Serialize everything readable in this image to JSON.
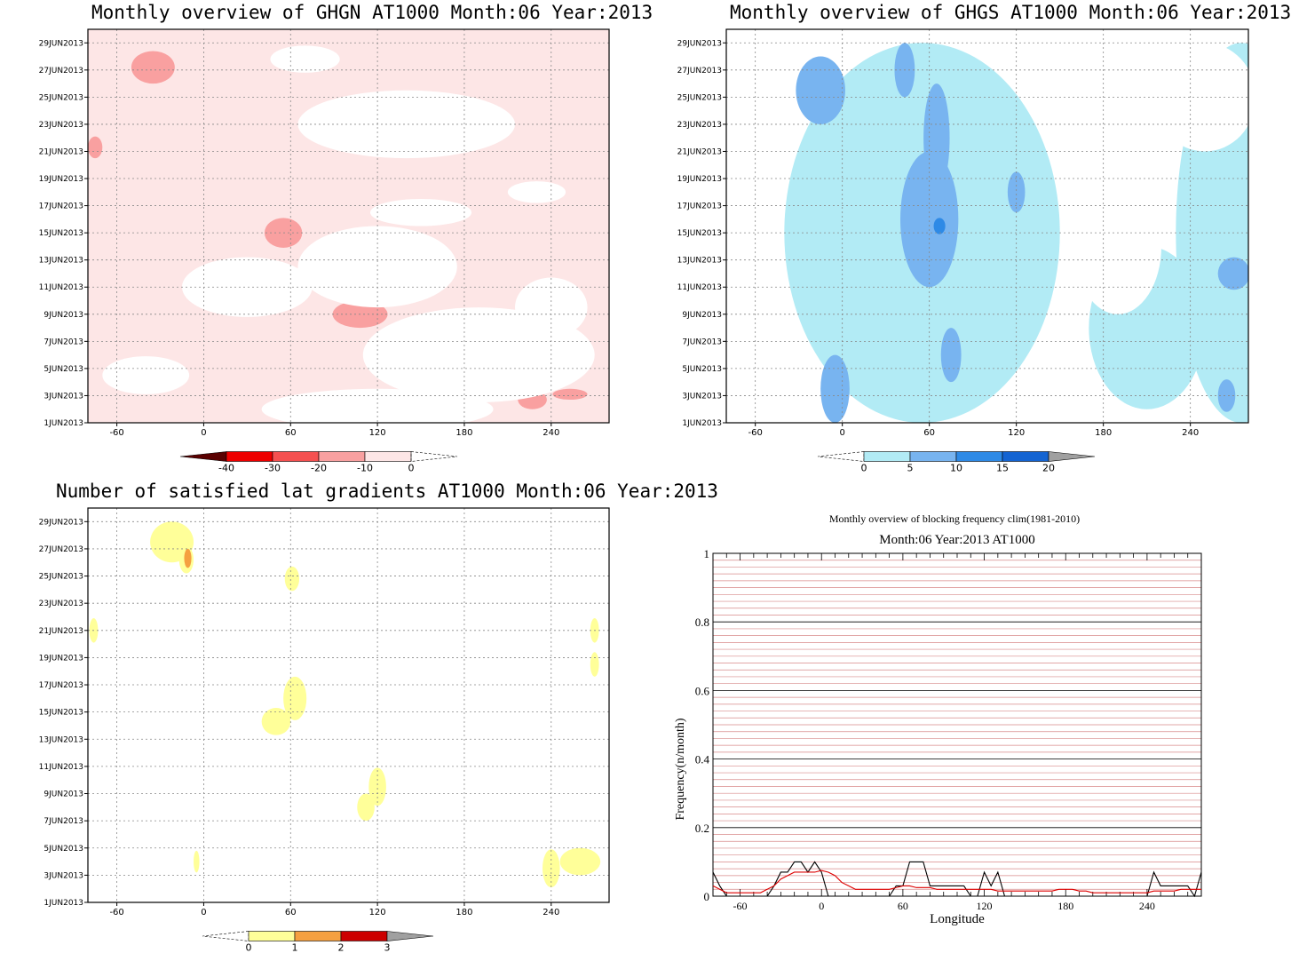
{
  "chart_data": [
    {
      "type": "heatmap",
      "title": "Monthly overview of GHGN AT1000 Month:06 Year:2013",
      "x_ticks": [
        "-60",
        "0",
        "60",
        "120",
        "180",
        "240"
      ],
      "y_ticks": [
        "1JUN2013",
        "3JUN2013",
        "5JUN2013",
        "7JUN2013",
        "9JUN2013",
        "11JUN2013",
        "13JUN2013",
        "15JUN2013",
        "17JUN2013",
        "19JUN2013",
        "21JUN2013",
        "23JUN2013",
        "25JUN2013",
        "27JUN2013",
        "29JUN2013"
      ],
      "colorbar": {
        "labels": [
          "-40",
          "-30",
          "-20",
          "-10",
          "0"
        ],
        "colors": [
          "#5a0000",
          "#ee0000",
          "#f55050",
          "#f9a0a0",
          "#fde6e6"
        ]
      },
      "background": "#fde6e6",
      "regions": [
        {
          "level": "-10",
          "color": "#f9a0a0",
          "cx": -35,
          "cy": 27.2,
          "rx": 15,
          "ry": 1.2
        },
        {
          "level": "-10",
          "color": "#f9a0a0",
          "cx": -75,
          "cy": 21.3,
          "rx": 5,
          "ry": 0.8
        },
        {
          "level": "-10",
          "color": "#f9a0a0",
          "cx": 55,
          "cy": 15.0,
          "rx": 13,
          "ry": 1.1
        },
        {
          "level": "-10",
          "color": "#f9a0a0",
          "cx": 108,
          "cy": 9.0,
          "rx": 19,
          "ry": 1.0
        },
        {
          "level": "-10",
          "color": "#f9a0a0",
          "cx": 227,
          "cy": 2.7,
          "rx": 10,
          "ry": 0.7
        },
        {
          "level": "-10",
          "color": "#f9a0a0",
          "cx": 253,
          "cy": 3.1,
          "rx": 12,
          "ry": 0.4
        },
        {
          "level": "0+",
          "color": "#ffffff",
          "cx": 70,
          "cy": 27.8,
          "rx": 24,
          "ry": 1.0
        },
        {
          "level": "0+",
          "color": "#ffffff",
          "cx": 140,
          "cy": 23.0,
          "rx": 75,
          "ry": 2.5
        },
        {
          "level": "0+",
          "color": "#ffffff",
          "cx": 30,
          "cy": 11.0,
          "rx": 45,
          "ry": 2.2
        },
        {
          "level": "0+",
          "color": "#ffffff",
          "cx": 120,
          "cy": 12.5,
          "rx": 55,
          "ry": 3.0
        },
        {
          "level": "0+",
          "color": "#ffffff",
          "cx": 190,
          "cy": 6.0,
          "rx": 80,
          "ry": 3.5
        },
        {
          "level": "0+",
          "color": "#ffffff",
          "cx": -40,
          "cy": 4.5,
          "rx": 30,
          "ry": 1.4
        },
        {
          "level": "0+",
          "color": "#ffffff",
          "cx": 120,
          "cy": 2.0,
          "rx": 80,
          "ry": 1.5
        },
        {
          "level": "0+",
          "color": "#ffffff",
          "cx": 240,
          "cy": 9.5,
          "rx": 25,
          "ry": 2.2
        },
        {
          "level": "0+",
          "color": "#ffffff",
          "cx": 150,
          "cy": 16.5,
          "rx": 35,
          "ry": 1.0
        },
        {
          "level": "0+",
          "color": "#ffffff",
          "cx": 230,
          "cy": 18.0,
          "rx": 20,
          "ry": 0.8
        }
      ]
    },
    {
      "type": "heatmap",
      "title": "Monthly overview of GHGS AT1000 Month:06 Year:2013",
      "x_ticks": [
        "-60",
        "0",
        "60",
        "120",
        "180",
        "240"
      ],
      "y_ticks": [
        "1JUN2013",
        "3JUN2013",
        "5JUN2013",
        "7JUN2013",
        "9JUN2013",
        "11JUN2013",
        "13JUN2013",
        "15JUN2013",
        "17JUN2013",
        "19JUN2013",
        "21JUN2013",
        "23JUN2013",
        "25JUN2013",
        "27JUN2013",
        "29JUN2013"
      ],
      "colorbar": {
        "labels": [
          "0",
          "5",
          "10",
          "15",
          "20"
        ],
        "colors": [
          "#b2ebf5",
          "#78b4f0",
          "#2e8ae6",
          "#1464d2",
          "#a0a0a0"
        ]
      },
      "background": "#ffffff",
      "regions": [
        {
          "level": "0-5",
          "color": "#b2ebf5",
          "cx": 55,
          "cy": 15,
          "rx": 95,
          "ry": 14
        },
        {
          "level": "0-5",
          "color": "#b2ebf5",
          "cx": 275,
          "cy": 15,
          "rx": 45,
          "ry": 14
        },
        {
          "level": "0-5",
          "color": "#b2ebf5",
          "cx": 210,
          "cy": 8,
          "rx": 40,
          "ry": 6
        },
        {
          "level": "0+",
          "color": "#ffffff",
          "cx": 190,
          "cy": 14,
          "rx": 30,
          "ry": 5
        },
        {
          "level": "0+",
          "color": "#ffffff",
          "cx": 250,
          "cy": 25,
          "rx": 35,
          "ry": 4
        },
        {
          "level": "5-10",
          "color": "#78b4f0",
          "cx": -15,
          "cy": 25.5,
          "rx": 17,
          "ry": 2.5
        },
        {
          "level": "5-10",
          "color": "#78b4f0",
          "cx": 60,
          "cy": 16,
          "rx": 20,
          "ry": 5
        },
        {
          "level": "5-10",
          "color": "#78b4f0",
          "cx": 65,
          "cy": 22,
          "rx": 9,
          "ry": 4
        },
        {
          "level": "5-10",
          "color": "#78b4f0",
          "cx": 75,
          "cy": 6,
          "rx": 7,
          "ry": 2
        },
        {
          "level": "5-10",
          "color": "#78b4f0",
          "cx": -5,
          "cy": 3.5,
          "rx": 10,
          "ry": 2.5
        },
        {
          "level": "5-10",
          "color": "#78b4f0",
          "cx": 270,
          "cy": 12,
          "rx": 11,
          "ry": 1.2
        },
        {
          "level": "5-10",
          "color": "#78b4f0",
          "cx": 265,
          "cy": 3,
          "rx": 6,
          "ry": 1.2
        },
        {
          "level": "5-10",
          "color": "#78b4f0",
          "cx": 43,
          "cy": 27,
          "rx": 7,
          "ry": 2
        },
        {
          "level": "5-10",
          "color": "#78b4f0",
          "cx": 120,
          "cy": 18,
          "rx": 6,
          "ry": 1.5
        },
        {
          "level": "10-15",
          "color": "#2e8ae6",
          "cx": 67,
          "cy": 15.5,
          "rx": 4,
          "ry": 0.6
        }
      ]
    },
    {
      "type": "heatmap",
      "title": "Number of satisfied lat gradients AT1000 Month:06 Year:2013",
      "x_ticks": [
        "-60",
        "0",
        "60",
        "120",
        "180",
        "240"
      ],
      "y_ticks": [
        "1JUN2013",
        "3JUN2013",
        "5JUN2013",
        "7JUN2013",
        "9JUN2013",
        "11JUN2013",
        "13JUN2013",
        "15JUN2013",
        "17JUN2013",
        "19JUN2013",
        "21JUN2013",
        "23JUN2013",
        "25JUN2013",
        "27JUN2013",
        "29JUN2013"
      ],
      "colorbar": {
        "labels": [
          "0",
          "1",
          "2",
          "3"
        ],
        "colors": [
          "#ffff99",
          "#f5a040",
          "#cc0000",
          "#a0a0a0"
        ]
      },
      "background": "#ffffff",
      "regions": [
        {
          "level": "0-1",
          "color": "#ffff99",
          "cx": -22,
          "cy": 27.5,
          "rx": 15,
          "ry": 1.5
        },
        {
          "level": "0-1",
          "color": "#ffff99",
          "cx": -12,
          "cy": 26.2,
          "rx": 5,
          "ry": 1.0
        },
        {
          "level": "0-1",
          "color": "#ffff99",
          "cx": 61,
          "cy": 24.8,
          "rx": 5,
          "ry": 0.9
        },
        {
          "level": "0-1",
          "color": "#ffff99",
          "cx": -76,
          "cy": 21,
          "rx": 3,
          "ry": 0.9
        },
        {
          "level": "0-1",
          "color": "#ffff99",
          "cx": 270,
          "cy": 21,
          "rx": 3,
          "ry": 0.9
        },
        {
          "level": "0-1",
          "color": "#ffff99",
          "cx": 270,
          "cy": 18.5,
          "rx": 3,
          "ry": 0.9
        },
        {
          "level": "0-1",
          "color": "#ffff99",
          "cx": 50,
          "cy": 14.3,
          "rx": 10,
          "ry": 1.0
        },
        {
          "level": "0-1",
          "color": "#ffff99",
          "cx": 63,
          "cy": 16,
          "rx": 8,
          "ry": 1.6
        },
        {
          "level": "0-1",
          "color": "#ffff99",
          "cx": 112,
          "cy": 8,
          "rx": 6,
          "ry": 1.0
        },
        {
          "level": "0-1",
          "color": "#ffff99",
          "cx": 120,
          "cy": 9.5,
          "rx": 6,
          "ry": 1.4
        },
        {
          "level": "0-1",
          "color": "#ffff99",
          "cx": -5,
          "cy": 4,
          "rx": 2,
          "ry": 0.8
        },
        {
          "level": "0-1",
          "color": "#ffff99",
          "cx": 240,
          "cy": 3.5,
          "rx": 6,
          "ry": 1.4
        },
        {
          "level": "0-1",
          "color": "#ffff99",
          "cx": 260,
          "cy": 4,
          "rx": 14,
          "ry": 1.0
        },
        {
          "level": "1-2",
          "color": "#f5a040",
          "cx": -11,
          "cy": 26.3,
          "rx": 2.5,
          "ry": 0.7
        }
      ]
    },
    {
      "type": "line",
      "title": "Monthly overview of blocking frequency clim(1981-2010)",
      "subtitle": "Month:06 Year:2013  AT1000",
      "xlabel": "Longitude",
      "ylabel": "Frequency(n/month)",
      "x_ticks": [
        "-60",
        "0",
        "60",
        "120",
        "180",
        "240"
      ],
      "y_ticks": [
        "0",
        "0.2",
        "0.4",
        "0.6",
        "0.8",
        "1"
      ],
      "xlim": [
        -80,
        280
      ],
      "ylim": [
        0,
        1
      ],
      "series": [
        {
          "color": "#000000",
          "x": [
            -80,
            -75,
            -70,
            -65,
            -60,
            -55,
            -50,
            -45,
            -40,
            -35,
            -30,
            -25,
            -20,
            -15,
            -10,
            -5,
            0,
            5,
            10,
            15,
            20,
            25,
            30,
            35,
            40,
            45,
            50,
            55,
            60,
            65,
            70,
            75,
            80,
            85,
            90,
            95,
            100,
            105,
            110,
            115,
            120,
            125,
            130,
            135,
            140,
            145,
            150,
            155,
            160,
            165,
            170,
            175,
            180,
            185,
            190,
            195,
            200,
            205,
            210,
            215,
            220,
            225,
            230,
            235,
            240,
            245,
            250,
            255,
            260,
            265,
            270,
            275,
            280
          ],
          "values": [
            0.07,
            0.03,
            0,
            0,
            0,
            0,
            0,
            0,
            0,
            0.03,
            0.07,
            0.07,
            0.1,
            0.1,
            0.07,
            0.1,
            0.07,
            0,
            0,
            0,
            0,
            0,
            0,
            0,
            0,
            0,
            0,
            0.03,
            0.03,
            0.1,
            0.1,
            0.1,
            0.03,
            0.03,
            0.03,
            0.03,
            0.03,
            0.03,
            0,
            0,
            0.07,
            0.03,
            0.07,
            0,
            0,
            0,
            0,
            0,
            0,
            0,
            0,
            0,
            0,
            0,
            0,
            0,
            0,
            0,
            0,
            0,
            0,
            0,
            0,
            0,
            0,
            0.07,
            0.03,
            0.03,
            0.03,
            0.03,
            0.03,
            0,
            0.07
          ]
        },
        {
          "color": "#dd0000",
          "x": [
            -80,
            -75,
            -70,
            -65,
            -60,
            -55,
            -50,
            -45,
            -40,
            -35,
            -30,
            -25,
            -20,
            -15,
            -10,
            -5,
            0,
            5,
            10,
            15,
            20,
            25,
            30,
            35,
            40,
            45,
            50,
            55,
            60,
            65,
            70,
            75,
            80,
            85,
            90,
            95,
            100,
            105,
            110,
            115,
            120,
            125,
            130,
            135,
            140,
            145,
            150,
            155,
            160,
            165,
            170,
            175,
            180,
            185,
            190,
            195,
            200,
            205,
            210,
            215,
            220,
            225,
            230,
            235,
            240,
            245,
            250,
            255,
            260,
            265,
            270,
            275,
            280
          ],
          "values": [
            0.03,
            0.02,
            0.01,
            0.01,
            0.01,
            0.01,
            0.01,
            0.01,
            0.02,
            0.03,
            0.05,
            0.06,
            0.07,
            0.07,
            0.07,
            0.07,
            0.075,
            0.07,
            0.06,
            0.04,
            0.03,
            0.02,
            0.02,
            0.02,
            0.02,
            0.02,
            0.02,
            0.025,
            0.03,
            0.03,
            0.025,
            0.025,
            0.025,
            0.02,
            0.02,
            0.02,
            0.02,
            0.02,
            0.02,
            0.02,
            0.02,
            0.02,
            0.015,
            0.015,
            0.015,
            0.015,
            0.015,
            0.015,
            0.015,
            0.015,
            0.015,
            0.02,
            0.02,
            0.02,
            0.015,
            0.015,
            0.01,
            0.01,
            0.01,
            0.01,
            0.01,
            0.01,
            0.01,
            0.01,
            0.01,
            0.015,
            0.015,
            0.015,
            0.015,
            0.02,
            0.02,
            0.02,
            0.02
          ]
        }
      ]
    }
  ]
}
